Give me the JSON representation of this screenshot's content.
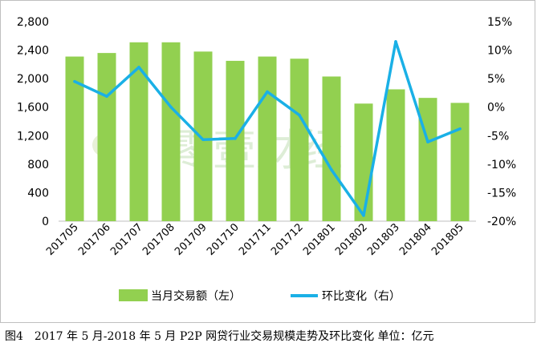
{
  "colors": {
    "bar": "#92d050",
    "line": "#1ab0e6",
    "axis": "#bfbfbf",
    "text": "#000000",
    "watermark": "#d8ead0"
  },
  "watermark": {
    "text": "零壹财经"
  },
  "caption": {
    "figure_label": "图4",
    "text": "2017 年 5 月-2018 年 5 月 P2P 网贷行业交易规模走势及环比变化 单位：亿元"
  },
  "chart_data": {
    "type": "bar+line",
    "categories": [
      "201705",
      "201706",
      "201707",
      "201708",
      "201709",
      "201710",
      "201711",
      "201712",
      "201801",
      "201802",
      "201803",
      "201804",
      "201805"
    ],
    "series": [
      {
        "name": "当月交易额（左）",
        "type": "bar",
        "axis": "left",
        "values": [
          2310,
          2360,
          2510,
          2510,
          2380,
          2250,
          2310,
          2280,
          2030,
          1650,
          1850,
          1730,
          1660
        ]
      },
      {
        "name": "环比变化（右）",
        "type": "line",
        "axis": "right",
        "values": [
          4.5,
          1.9,
          7.0,
          0.0,
          -5.7,
          -5.5,
          2.7,
          -1.4,
          -11.0,
          -19.0,
          11.5,
          -6.1,
          -3.8
        ]
      }
    ],
    "left_axis": {
      "min": 0,
      "max": 2800,
      "ticks": [
        "0",
        "400",
        "800",
        "1,200",
        "1,600",
        "2,000",
        "2,400",
        "2,800"
      ]
    },
    "right_axis": {
      "min": -20,
      "max": 15,
      "ticks": [
        "-20%",
        "-15%",
        "-10%",
        "-5%",
        "0%",
        "5%",
        "10%",
        "15%"
      ]
    },
    "legend": {
      "position": "bottom",
      "entries": [
        "当月交易额（左）",
        "环比变化（右）"
      ]
    }
  }
}
